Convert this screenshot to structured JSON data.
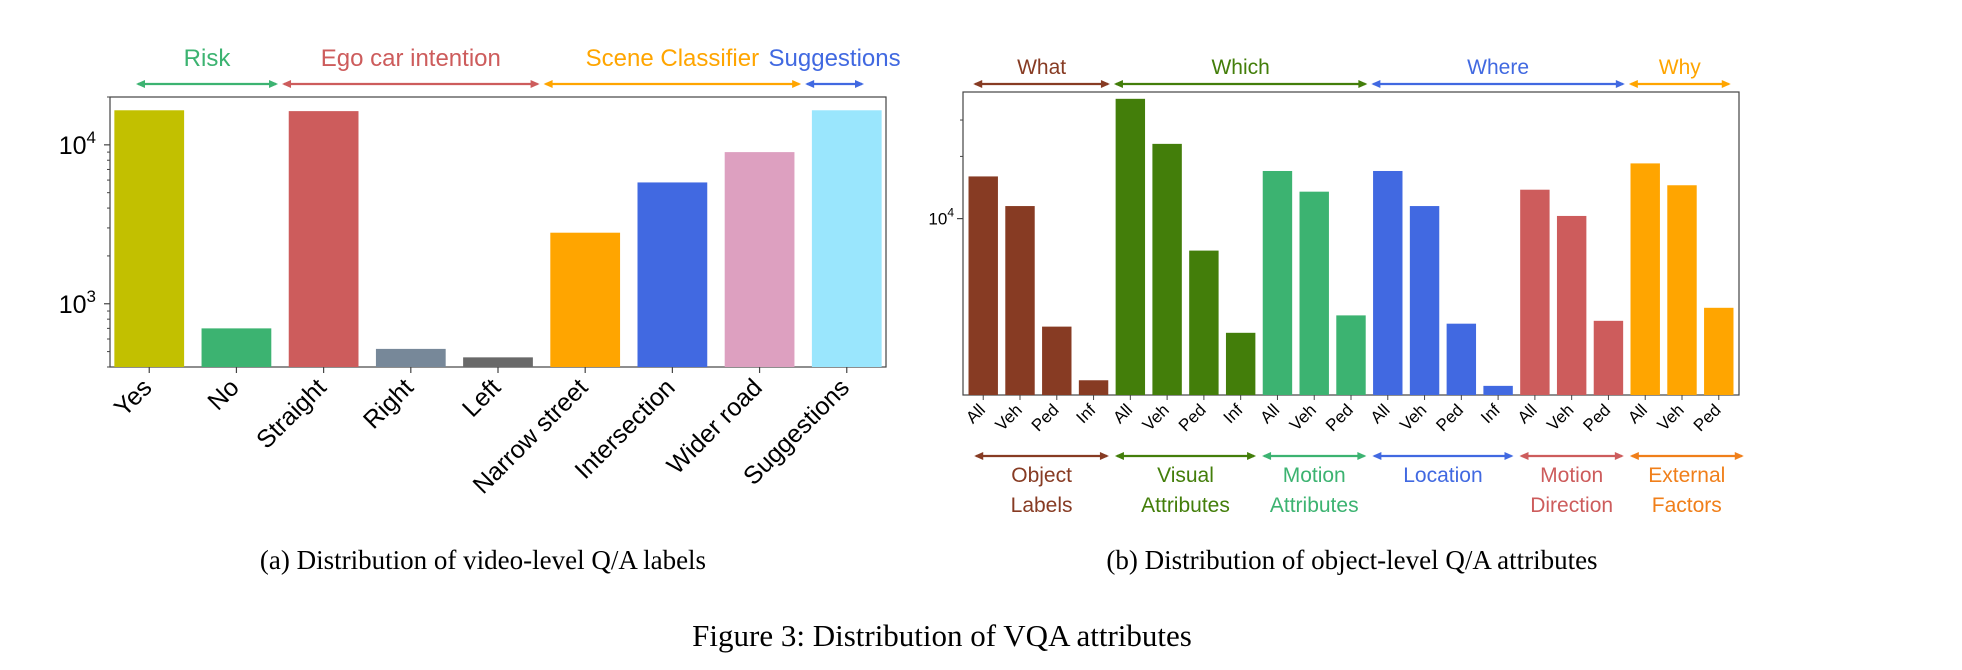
{
  "figure_caption": "Figure 3: Distribution of VQA attributes",
  "panels": {
    "a": {
      "caption": "(a) Distribution of video-level Q/A labels"
    },
    "b": {
      "caption": "(b) Distribution of object-level Q/A attributes"
    }
  },
  "chart_data": [
    {
      "type": "bar",
      "yscale": "log",
      "ylim": [
        400,
        20000
      ],
      "yticks": [
        {
          "value": 1000,
          "base": "10",
          "exp": "3"
        },
        {
          "value": 10000,
          "base": "10",
          "exp": "4"
        }
      ],
      "categories": [
        "Yes",
        "No",
        "Straight",
        "Right",
        "Left",
        "Narrow street",
        "Intersection",
        "Wider road",
        "Suggestions"
      ],
      "values": [
        16500,
        700,
        16300,
        520,
        460,
        2800,
        5800,
        9000,
        16500
      ],
      "colors": [
        "#c2c000",
        "#3cb371",
        "#cd5c5c",
        "#778899",
        "#696969",
        "#ffa500",
        "#4169e1",
        "#dda0c0",
        "#9ae6fd"
      ],
      "groups": [
        {
          "label": "Risk",
          "color": "#3cb371",
          "start": 0,
          "end": 1
        },
        {
          "label": "Ego car intention",
          "color": "#cd5c5c",
          "start": 2,
          "end": 4
        },
        {
          "label": "Scene Classifier",
          "color": "#ffa500",
          "start": 5,
          "end": 7
        },
        {
          "label": "Suggestions",
          "color": "#4169e1",
          "start": 8,
          "end": 8
        }
      ]
    },
    {
      "type": "bar",
      "yscale": "log",
      "ylim": [
        1400,
        41000
      ],
      "yticks": [
        {
          "value": 10000,
          "base": "10",
          "exp": "4"
        }
      ],
      "categories": [
        "All",
        "Veh",
        "Ped",
        "Inf",
        "All",
        "Veh",
        "Ped",
        "Inf",
        "All",
        "Veh",
        "Ped",
        "All",
        "Veh",
        "Ped",
        "Inf",
        "All",
        "Veh",
        "Ped",
        "All",
        "Veh",
        "Ped"
      ],
      "values": [
        16000,
        11500,
        3000,
        1650,
        38000,
        23000,
        7000,
        2800,
        17000,
        13500,
        3400,
        17000,
        11500,
        3100,
        1550,
        13800,
        10300,
        3200,
        18500,
        14500,
        3700
      ],
      "colors": [
        "#873b23",
        "#873b23",
        "#873b23",
        "#873b23",
        "#437e0a",
        "#437e0a",
        "#437e0a",
        "#437e0a",
        "#3cb371",
        "#3cb371",
        "#3cb371",
        "#4169e1",
        "#4169e1",
        "#4169e1",
        "#4169e1",
        "#cd5c5c",
        "#cd5c5c",
        "#cd5c5c",
        "#ffa500",
        "#ffa500",
        "#ffa500"
      ],
      "top_groups": [
        {
          "label": "What",
          "color": "#873b23",
          "start": 0,
          "end": 3
        },
        {
          "label": "Which",
          "color": "#437e0a",
          "start": 4,
          "end": 10
        },
        {
          "label": "Where",
          "color": "#4169e1",
          "start": 11,
          "end": 17
        },
        {
          "label": "Why",
          "color": "#ffa500",
          "start": 18,
          "end": 20
        }
      ],
      "bottom_groups": [
        {
          "lines": [
            "Object",
            "Labels"
          ],
          "color": "#873b23",
          "start": 0,
          "end": 3
        },
        {
          "lines": [
            "Visual",
            "Attributes"
          ],
          "color": "#437e0a",
          "start": 4,
          "end": 7
        },
        {
          "lines": [
            "Motion",
            "Attributes"
          ],
          "color": "#3cb371",
          "start": 8,
          "end": 10
        },
        {
          "lines": [
            "Location",
            ""
          ],
          "color": "#4169e1",
          "start": 11,
          "end": 14
        },
        {
          "lines": [
            "Motion",
            "Direction"
          ],
          "color": "#cd5c5c",
          "start": 15,
          "end": 17
        },
        {
          "lines": [
            "External",
            "Factors"
          ],
          "color": "#f07f1a",
          "start": 18,
          "end": 20
        }
      ]
    }
  ]
}
